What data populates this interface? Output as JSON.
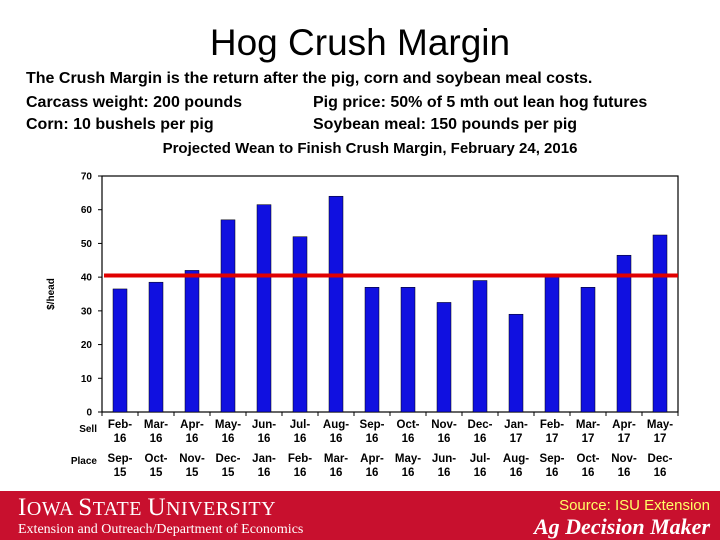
{
  "slide": {
    "title": "Hog Crush Margin",
    "line1": "The Crush Margin is the return after the pig, corn and soybean meal costs.",
    "line2_left": "Carcass weight:  200 pounds",
    "line2_right": "Pig price:  50% of 5 mth out lean hog futures",
    "line3_left": "Corn:  10 bushels per pig",
    "line3_right": "Soybean meal:  150 pounds per pig"
  },
  "footer": {
    "university_first": "I",
    "university_rest1": "OWA ",
    "university_second": "S",
    "university_rest2": "TATE ",
    "university_third": "U",
    "university_rest3": "NIVERSITY",
    "department": "Extension and Outreach/Department of Economics",
    "source": "Source: ISU Extension",
    "brand": "Ag Decision Maker"
  },
  "colors": {
    "bar": "#1010e0",
    "reference_line": "#e00000",
    "footer": "#c8102e"
  },
  "chart_data": {
    "type": "bar",
    "title": "Projected Wean to Finish Crush Margin, February 24, 2016",
    "ylabel": "$/head",
    "ylim": [
      0,
      70
    ],
    "yticks": [
      0,
      10,
      20,
      30,
      40,
      50,
      60,
      70
    ],
    "grid": false,
    "row_labels": [
      "Sell",
      "Place"
    ],
    "sell_categories": [
      "Feb-16",
      "Mar-16",
      "Apr-16",
      "May-16",
      "Jun-16",
      "Jul-16",
      "Aug-16",
      "Sep-16",
      "Oct-16",
      "Nov-16",
      "Dec-16",
      "Jan-17",
      "Feb-17",
      "Mar-17",
      "Apr-17",
      "May-17"
    ],
    "place_categories": [
      "Sep-15",
      "Oct-15",
      "Nov-15",
      "Dec-15",
      "Jan-16",
      "Feb-16",
      "Mar-16",
      "Apr-16",
      "May-16",
      "Jun-16",
      "Jul-16",
      "Aug-16",
      "Sep-16",
      "Oct-16",
      "Nov-16",
      "Dec-16"
    ],
    "values": [
      36.5,
      38.5,
      42,
      57,
      61.5,
      52,
      64,
      37,
      37,
      32.5,
      39,
      29,
      40,
      37,
      46.5,
      52.5
    ],
    "reference_line": 40.5
  }
}
